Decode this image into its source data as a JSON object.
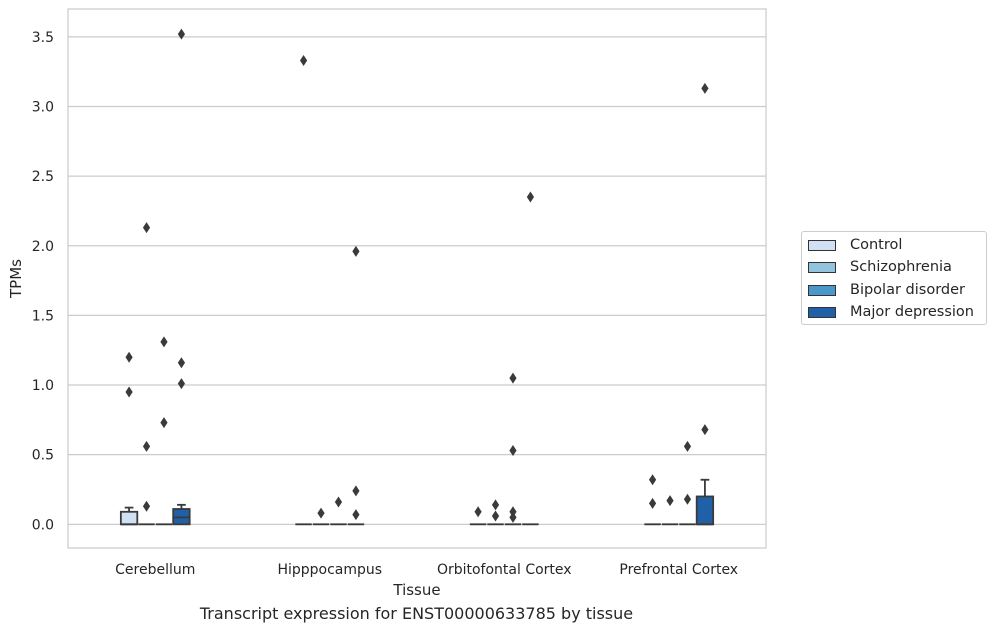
{
  "caption": "Transcript expression for ENST00000633785 by tissue",
  "chart_data": {
    "type": "box",
    "xlabel": "Tissue",
    "ylabel": "TPMs",
    "ylim": [
      -0.17,
      3.7
    ],
    "yticks": [
      0.0,
      0.5,
      1.0,
      1.5,
      2.0,
      2.5,
      3.0,
      3.5
    ],
    "ytick_labels": [
      "0.0",
      "0.5",
      "1.0",
      "1.5",
      "2.0",
      "2.5",
      "3.0",
      "3.5"
    ],
    "grid": "horizontal",
    "legend_position": "right",
    "categories": [
      "Cerebellum",
      "Hipppocampus",
      "Orbitofontal Cortex",
      "Prefrontal Cortex"
    ],
    "series": [
      {
        "name": "Control",
        "color": "#cfe1f2",
        "boxes": [
          {
            "q1": 0.0,
            "median": 0.0,
            "q3": 0.09,
            "whisker_low": 0.0,
            "whisker_high": 0.12,
            "outliers": [
              1.2,
              0.95
            ]
          },
          {
            "q1": 0.0,
            "median": 0.0,
            "q3": 0.0,
            "whisker_low": 0.0,
            "whisker_high": 0.0,
            "outliers": [
              3.33
            ]
          },
          {
            "q1": 0.0,
            "median": 0.0,
            "q3": 0.0,
            "whisker_low": 0.0,
            "whisker_high": 0.0,
            "outliers": [
              0.09
            ]
          },
          {
            "q1": 0.0,
            "median": 0.0,
            "q3": 0.0,
            "whisker_low": 0.0,
            "whisker_high": 0.0,
            "outliers": [
              0.32,
              0.15
            ]
          }
        ]
      },
      {
        "name": "Schizophrenia",
        "color": "#93c4de",
        "boxes": [
          {
            "q1": 0.0,
            "median": 0.0,
            "q3": 0.0,
            "whisker_low": 0.0,
            "whisker_high": 0.0,
            "outliers": [
              2.13,
              0.56,
              0.13
            ]
          },
          {
            "q1": 0.0,
            "median": 0.0,
            "q3": 0.0,
            "whisker_low": 0.0,
            "whisker_high": 0.0,
            "outliers": [
              0.08
            ]
          },
          {
            "q1": 0.0,
            "median": 0.0,
            "q3": 0.0,
            "whisker_low": 0.0,
            "whisker_high": 0.0,
            "outliers": [
              0.14,
              0.06
            ]
          },
          {
            "q1": 0.0,
            "median": 0.0,
            "q3": 0.0,
            "whisker_low": 0.0,
            "whisker_high": 0.0,
            "outliers": [
              0.17
            ]
          }
        ]
      },
      {
        "name": "Bipolar disorder",
        "color": "#4a98c9",
        "boxes": [
          {
            "q1": 0.0,
            "median": 0.0,
            "q3": 0.0,
            "whisker_low": 0.0,
            "whisker_high": 0.0,
            "outliers": [
              1.31,
              0.73
            ]
          },
          {
            "q1": 0.0,
            "median": 0.0,
            "q3": 0.0,
            "whisker_low": 0.0,
            "whisker_high": 0.0,
            "outliers": [
              0.16
            ]
          },
          {
            "q1": 0.0,
            "median": 0.0,
            "q3": 0.0,
            "whisker_low": 0.0,
            "whisker_high": 0.0,
            "outliers": [
              1.05,
              0.53,
              0.09,
              0.05
            ]
          },
          {
            "q1": 0.0,
            "median": 0.0,
            "q3": 0.0,
            "whisker_low": 0.0,
            "whisker_high": 0.0,
            "outliers": [
              0.56,
              0.18
            ]
          }
        ]
      },
      {
        "name": "Major depression",
        "color": "#2060a7",
        "boxes": [
          {
            "q1": 0.0,
            "median": 0.05,
            "q3": 0.11,
            "whisker_low": 0.0,
            "whisker_high": 0.14,
            "outliers": [
              3.52,
              1.16,
              1.01
            ]
          },
          {
            "q1": 0.0,
            "median": 0.0,
            "q3": 0.0,
            "whisker_low": 0.0,
            "whisker_high": 0.0,
            "outliers": [
              1.96,
              0.24,
              0.07
            ]
          },
          {
            "q1": 0.0,
            "median": 0.0,
            "q3": 0.0,
            "whisker_low": 0.0,
            "whisker_high": 0.0,
            "outliers": [
              2.35
            ]
          },
          {
            "q1": 0.0,
            "median": 0.0,
            "q3": 0.2,
            "whisker_low": 0.0,
            "whisker_high": 0.32,
            "outliers": [
              3.13,
              0.68
            ]
          }
        ]
      }
    ]
  }
}
